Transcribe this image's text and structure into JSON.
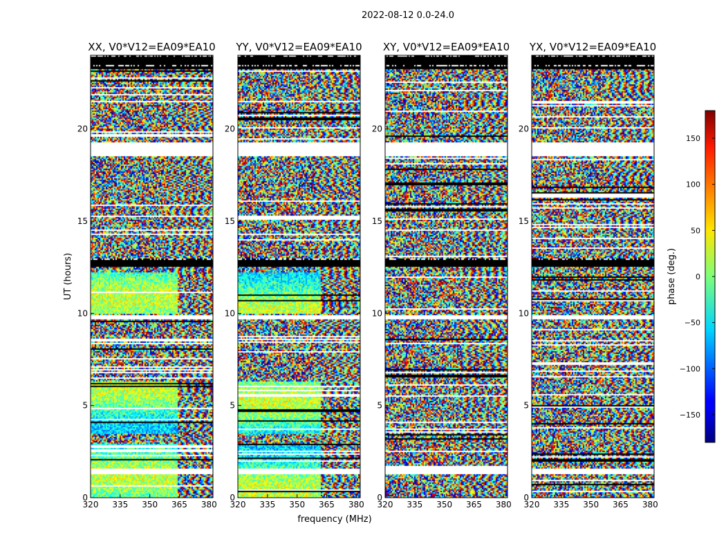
{
  "figure": {
    "suptitle": "2022-08-12 0.0-24.0",
    "xlabel": "frequency (MHz)",
    "ylabel": "UT (hours)"
  },
  "colors": {
    "flag": "#000000",
    "background": "#ffffff",
    "axis": "#000000"
  },
  "chart_data": {
    "type": "heatmap",
    "title": "2022-08-12 0.0-24.0",
    "xlabel": "frequency (MHz)",
    "ylabel": "UT (hours)",
    "xlim": [
      320,
      382
    ],
    "ylim": [
      0,
      24
    ],
    "xticks": [
      320,
      335,
      350,
      365,
      380
    ],
    "yticks": [
      0,
      5,
      10,
      15,
      20
    ],
    "colorbar": {
      "label": "phase (deg.)",
      "range": [
        -180,
        180
      ],
      "ticks": [
        150,
        100,
        50,
        0,
        -50,
        -100,
        -150
      ],
      "colormap": "jet"
    },
    "panels": [
      {
        "id": "xx",
        "title": "XX, V0*V12=EA09*EA10",
        "coherent_band_mhz": [
          320,
          363.5
        ]
      },
      {
        "id": "yy",
        "title": "YY, V0*V12=EA09*EA10",
        "coherent_band_mhz": [
          320,
          361.5
        ]
      },
      {
        "id": "xy",
        "title": "XY, V0*V12=EA09*EA10",
        "coherent_band_mhz": null
      },
      {
        "id": "yx",
        "title": "YX, V0*V12=EA09*EA10",
        "coherent_band_mhz": null
      }
    ],
    "flagged_ut_ranges": [
      [
        23.3,
        24.0
      ],
      [
        12.6,
        13.0
      ]
    ],
    "gap_ut_ranges": [
      [
        19.3,
        18.6
      ],
      [
        9.95,
        9.75
      ],
      [
        1.35,
        1.5
      ]
    ]
  }
}
